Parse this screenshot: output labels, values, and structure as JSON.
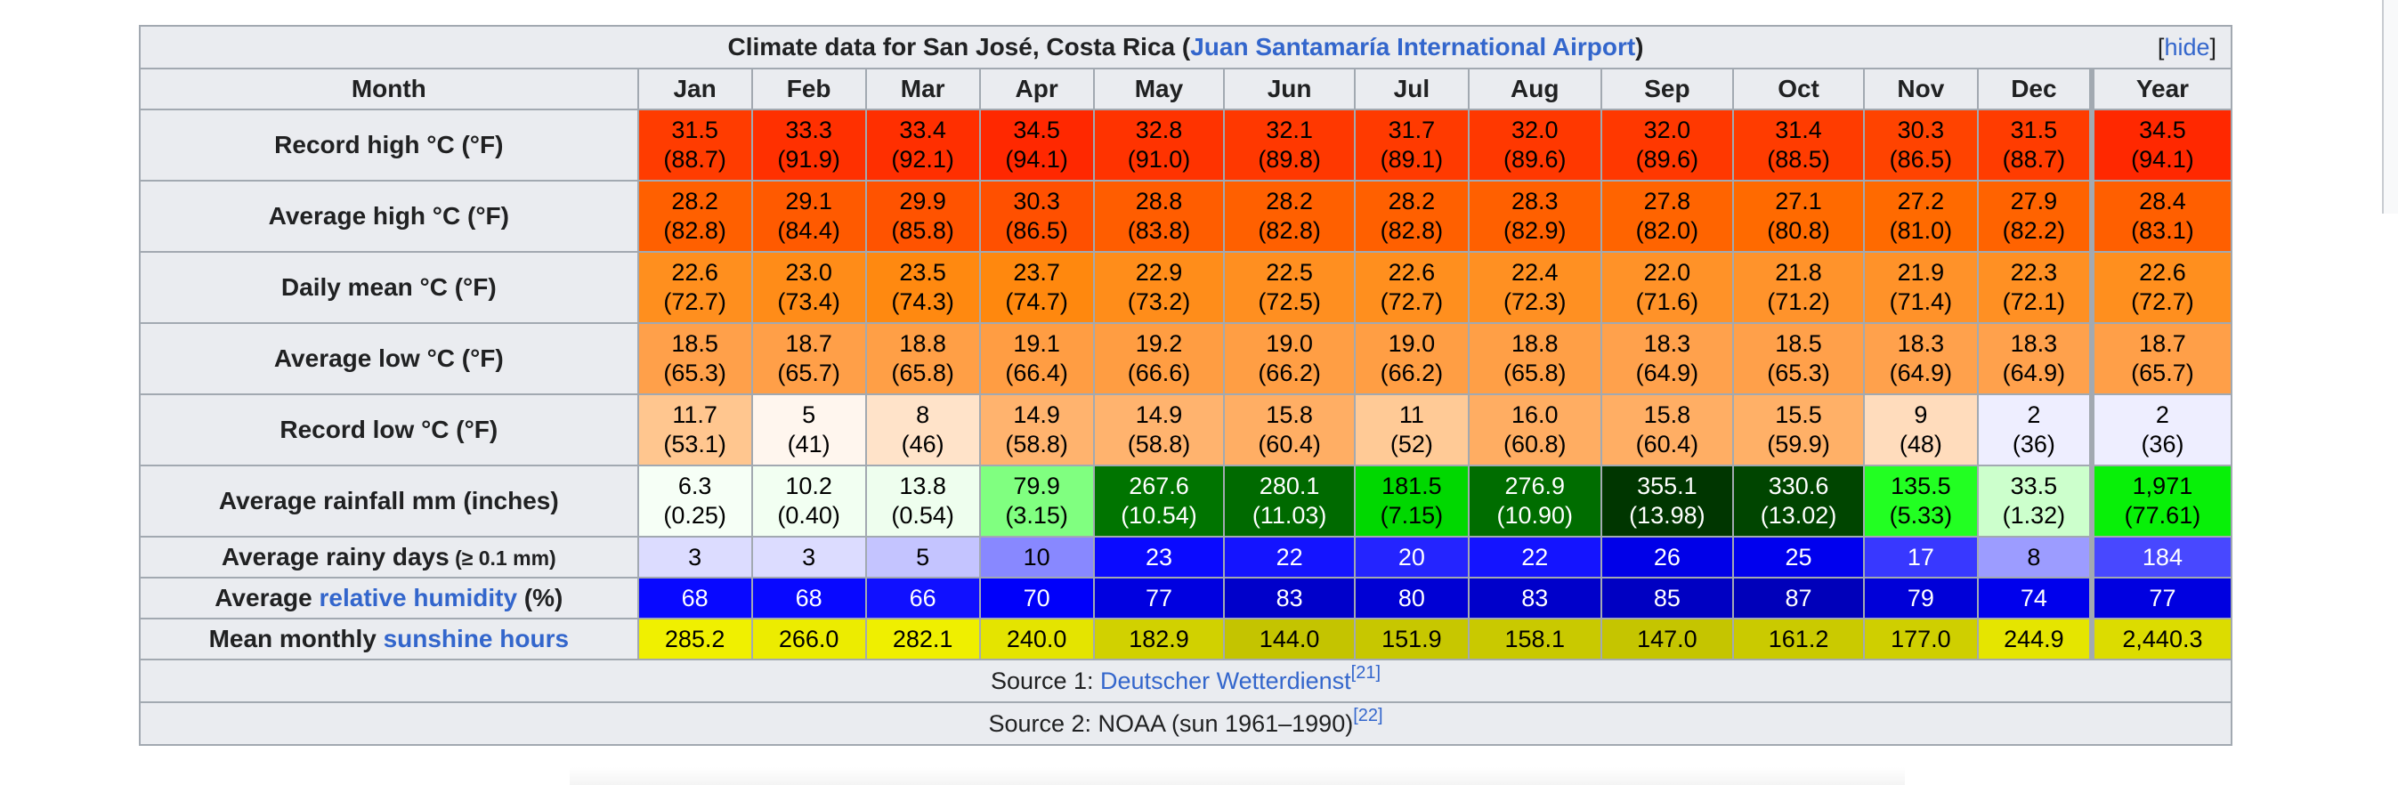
{
  "caption": {
    "prefix": "Climate data for San José, Costa Rica (",
    "link": "Juan Santamaría International Airport",
    "suffix": ")",
    "hide_open": "[",
    "hide_label": "hide",
    "hide_close": "]"
  },
  "header": {
    "month_label": "Month",
    "months": [
      "Jan",
      "Feb",
      "Mar",
      "Apr",
      "May",
      "Jun",
      "Jul",
      "Aug",
      "Sep",
      "Oct",
      "Nov",
      "Dec",
      "Year"
    ]
  },
  "rows": [
    {
      "label": "Record high °C (°F)",
      "cells": [
        {
          "c": "31.5",
          "f": "(88.7)",
          "bg": "#ff3c00",
          "fg": "#000000"
        },
        {
          "c": "33.3",
          "f": "(91.9)",
          "bg": "#ff3000",
          "fg": "#000000"
        },
        {
          "c": "33.4",
          "f": "(92.1)",
          "bg": "#ff2f00",
          "fg": "#000000"
        },
        {
          "c": "34.5",
          "f": "(94.1)",
          "bg": "#ff2800",
          "fg": "#000000"
        },
        {
          "c": "32.8",
          "f": "(91.0)",
          "bg": "#ff3300",
          "fg": "#000000"
        },
        {
          "c": "32.1",
          "f": "(89.8)",
          "bg": "#ff3800",
          "fg": "#000000"
        },
        {
          "c": "31.7",
          "f": "(89.1)",
          "bg": "#ff3a00",
          "fg": "#000000"
        },
        {
          "c": "32.0",
          "f": "(89.6)",
          "bg": "#ff3800",
          "fg": "#000000"
        },
        {
          "c": "32.0",
          "f": "(89.6)",
          "bg": "#ff3800",
          "fg": "#000000"
        },
        {
          "c": "31.4",
          "f": "(88.5)",
          "bg": "#ff3c00",
          "fg": "#000000"
        },
        {
          "c": "30.3",
          "f": "(86.5)",
          "bg": "#ff4300",
          "fg": "#000000"
        },
        {
          "c": "31.5",
          "f": "(88.7)",
          "bg": "#ff3c00",
          "fg": "#000000"
        },
        {
          "c": "34.5",
          "f": "(94.1)",
          "bg": "#ff2800",
          "fg": "#000000"
        }
      ]
    },
    {
      "label": "Average high °C (°F)",
      "cells": [
        {
          "c": "28.2",
          "f": "(82.8)",
          "bg": "#ff6000",
          "fg": "#000000"
        },
        {
          "c": "29.1",
          "f": "(84.4)",
          "bg": "#ff5a00",
          "fg": "#000000"
        },
        {
          "c": "29.9",
          "f": "(85.8)",
          "bg": "#ff5300",
          "fg": "#000000"
        },
        {
          "c": "30.3",
          "f": "(86.5)",
          "bg": "#ff5000",
          "fg": "#000000"
        },
        {
          "c": "28.8",
          "f": "(83.8)",
          "bg": "#ff5d00",
          "fg": "#000000"
        },
        {
          "c": "28.2",
          "f": "(82.8)",
          "bg": "#ff6000",
          "fg": "#000000"
        },
        {
          "c": "28.2",
          "f": "(82.8)",
          "bg": "#ff6000",
          "fg": "#000000"
        },
        {
          "c": "28.3",
          "f": "(82.9)",
          "bg": "#ff6000",
          "fg": "#000000"
        },
        {
          "c": "27.8",
          "f": "(82.0)",
          "bg": "#ff6400",
          "fg": "#000000"
        },
        {
          "c": "27.1",
          "f": "(80.8)",
          "bg": "#ff6a00",
          "fg": "#000000"
        },
        {
          "c": "27.2",
          "f": "(81.0)",
          "bg": "#ff6a00",
          "fg": "#000000"
        },
        {
          "c": "27.9",
          "f": "(82.2)",
          "bg": "#ff6300",
          "fg": "#000000"
        },
        {
          "c": "28.4",
          "f": "(83.1)",
          "bg": "#ff5f00",
          "fg": "#000000"
        }
      ]
    },
    {
      "label": "Daily mean °C (°F)",
      "cells": [
        {
          "c": "22.6",
          "f": "(72.7)",
          "bg": "#ff8f1e",
          "fg": "#000000"
        },
        {
          "c": "23.0",
          "f": "(73.4)",
          "bg": "#ff8c18",
          "fg": "#000000"
        },
        {
          "c": "23.5",
          "f": "(74.3)",
          "bg": "#ff8910",
          "fg": "#000000"
        },
        {
          "c": "23.7",
          "f": "(74.7)",
          "bg": "#ff880e",
          "fg": "#000000"
        },
        {
          "c": "22.9",
          "f": "(73.2)",
          "bg": "#ff8d1a",
          "fg": "#000000"
        },
        {
          "c": "22.5",
          "f": "(72.5)",
          "bg": "#ff8f20",
          "fg": "#000000"
        },
        {
          "c": "22.6",
          "f": "(72.7)",
          "bg": "#ff8f1e",
          "fg": "#000000"
        },
        {
          "c": "22.4",
          "f": "(72.3)",
          "bg": "#ff9022",
          "fg": "#000000"
        },
        {
          "c": "22.0",
          "f": "(71.6)",
          "bg": "#ff9228",
          "fg": "#000000"
        },
        {
          "c": "21.8",
          "f": "(71.2)",
          "bg": "#ff932b",
          "fg": "#000000"
        },
        {
          "c": "21.9",
          "f": "(71.4)",
          "bg": "#ff9229",
          "fg": "#000000"
        },
        {
          "c": "22.3",
          "f": "(72.1)",
          "bg": "#ff9023",
          "fg": "#000000"
        },
        {
          "c": "22.6",
          "f": "(72.7)",
          "bg": "#ff8f1e",
          "fg": "#000000"
        }
      ]
    },
    {
      "label": "Average low °C (°F)",
      "cells": [
        {
          "c": "18.5",
          "f": "(65.3)",
          "bg": "#ffa04a",
          "fg": "#000000"
        },
        {
          "c": "18.7",
          "f": "(65.7)",
          "bg": "#ff9f48",
          "fg": "#000000"
        },
        {
          "c": "18.8",
          "f": "(65.8)",
          "bg": "#ff9f46",
          "fg": "#000000"
        },
        {
          "c": "19.1",
          "f": "(66.4)",
          "bg": "#ff9d43",
          "fg": "#000000"
        },
        {
          "c": "19.2",
          "f": "(66.6)",
          "bg": "#ff9d42",
          "fg": "#000000"
        },
        {
          "c": "19.0",
          "f": "(66.2)",
          "bg": "#ff9e44",
          "fg": "#000000"
        },
        {
          "c": "19.0",
          "f": "(66.2)",
          "bg": "#ff9e44",
          "fg": "#000000"
        },
        {
          "c": "18.8",
          "f": "(65.8)",
          "bg": "#ff9f46",
          "fg": "#000000"
        },
        {
          "c": "18.3",
          "f": "(64.9)",
          "bg": "#ffa14c",
          "fg": "#000000"
        },
        {
          "c": "18.5",
          "f": "(65.3)",
          "bg": "#ffa04a",
          "fg": "#000000"
        },
        {
          "c": "18.3",
          "f": "(64.9)",
          "bg": "#ffa14c",
          "fg": "#000000"
        },
        {
          "c": "18.3",
          "f": "(64.9)",
          "bg": "#ffa14c",
          "fg": "#000000"
        },
        {
          "c": "18.7",
          "f": "(65.7)",
          "bg": "#ff9f48",
          "fg": "#000000"
        }
      ]
    },
    {
      "label": "Record low °C (°F)",
      "cells": [
        {
          "c": "11.7",
          "f": "(53.1)",
          "bg": "#ffc68f",
          "fg": "#000000"
        },
        {
          "c": "5",
          "f": "(41)",
          "bg": "#fff6ee",
          "fg": "#000000"
        },
        {
          "c": "8",
          "f": "(46)",
          "bg": "#ffe3c9",
          "fg": "#000000"
        },
        {
          "c": "14.9",
          "f": "(58.8)",
          "bg": "#ffb36e",
          "fg": "#000000"
        },
        {
          "c": "14.9",
          "f": "(58.8)",
          "bg": "#ffb36e",
          "fg": "#000000"
        },
        {
          "c": "15.8",
          "f": "(60.4)",
          "bg": "#ffae64",
          "fg": "#000000"
        },
        {
          "c": "11",
          "f": "(52)",
          "bg": "#ffca96",
          "fg": "#000000"
        },
        {
          "c": "16.0",
          "f": "(60.8)",
          "bg": "#ffad62",
          "fg": "#000000"
        },
        {
          "c": "15.8",
          "f": "(60.4)",
          "bg": "#ffae64",
          "fg": "#000000"
        },
        {
          "c": "15.5",
          "f": "(59.9)",
          "bg": "#ffb067",
          "fg": "#000000"
        },
        {
          "c": "9",
          "f": "(48)",
          "bg": "#ffdcbc",
          "fg": "#000000"
        },
        {
          "c": "2",
          "f": "(36)",
          "bg": "#eeeeff",
          "fg": "#000000"
        },
        {
          "c": "2",
          "f": "(36)",
          "bg": "#eeeeff",
          "fg": "#000000"
        }
      ]
    },
    {
      "label": "Average rainfall mm (inches)",
      "cells": [
        {
          "c": "6.3",
          "f": "(0.25)",
          "bg": "#f6fff6",
          "fg": "#000000"
        },
        {
          "c": "10.2",
          "f": "(0.40)",
          "bg": "#f2fff2",
          "fg": "#000000"
        },
        {
          "c": "13.8",
          "f": "(0.54)",
          "bg": "#eefeee",
          "fg": "#000000"
        },
        {
          "c": "79.9",
          "f": "(3.15)",
          "bg": "#80ff80",
          "fg": "#000000"
        },
        {
          "c": "267.6",
          "f": "(10.54)",
          "bg": "#007400",
          "fg": "#ffffff"
        },
        {
          "c": "280.1",
          "f": "(11.03)",
          "bg": "#006a00",
          "fg": "#ffffff"
        },
        {
          "c": "181.5",
          "f": "(7.15)",
          "bg": "#00d800",
          "fg": "#000000"
        },
        {
          "c": "276.9",
          "f": "(10.90)",
          "bg": "#006d00",
          "fg": "#ffffff"
        },
        {
          "c": "355.1",
          "f": "(13.98)",
          "bg": "#003600",
          "fg": "#ffffff"
        },
        {
          "c": "330.6",
          "f": "(13.02)",
          "bg": "#004500",
          "fg": "#ffffff"
        },
        {
          "c": "135.5",
          "f": "(5.33)",
          "bg": "#22ff22",
          "fg": "#000000"
        },
        {
          "c": "33.5",
          "f": "(1.32)",
          "bg": "#ccffcc",
          "fg": "#000000"
        },
        {
          "c": "1,971",
          "f": "(77.61)",
          "bg": "#08f008",
          "fg": "#000000"
        }
      ]
    }
  ],
  "single_rows": [
    {
      "label": "Average rainy days (≥ 0.1 mm)",
      "label_main": "Average rainy days",
      "label_small": " (≥ 0.1 mm)",
      "cells": [
        {
          "v": "3",
          "bg": "#dcdcff",
          "fg": "#000000"
        },
        {
          "v": "3",
          "bg": "#dcdcff",
          "fg": "#000000"
        },
        {
          "v": "5",
          "bg": "#c4c4ff",
          "fg": "#000000"
        },
        {
          "v": "10",
          "bg": "#8888ff",
          "fg": "#000000"
        },
        {
          "v": "23",
          "bg": "#0a0aff",
          "fg": "#ffffff"
        },
        {
          "v": "22",
          "bg": "#1414ff",
          "fg": "#ffffff"
        },
        {
          "v": "20",
          "bg": "#2424ff",
          "fg": "#ffffff"
        },
        {
          "v": "22",
          "bg": "#1414ff",
          "fg": "#ffffff"
        },
        {
          "v": "26",
          "bg": "#0000e8",
          "fg": "#ffffff"
        },
        {
          "v": "25",
          "bg": "#0000ee",
          "fg": "#ffffff"
        },
        {
          "v": "17",
          "bg": "#3838ff",
          "fg": "#ffffff"
        },
        {
          "v": "8",
          "bg": "#9c9cff",
          "fg": "#000000"
        },
        {
          "v": "184",
          "bg": "#4848ff",
          "fg": "#ffffff"
        }
      ]
    },
    {
      "label_pre": "Average ",
      "label_link": "relative humidity",
      "label_post": " (%)",
      "cells": [
        {
          "v": "68",
          "bg": "#0808ff",
          "fg": "#ffffff"
        },
        {
          "v": "68",
          "bg": "#0808ff",
          "fg": "#ffffff"
        },
        {
          "v": "66",
          "bg": "#1010ff",
          "fg": "#ffffff"
        },
        {
          "v": "70",
          "bg": "#0000fa",
          "fg": "#ffffff"
        },
        {
          "v": "77",
          "bg": "#0000e0",
          "fg": "#ffffff"
        },
        {
          "v": "83",
          "bg": "#0000ca",
          "fg": "#ffffff"
        },
        {
          "v": "80",
          "bg": "#0000d4",
          "fg": "#ffffff"
        },
        {
          "v": "83",
          "bg": "#0000ca",
          "fg": "#ffffff"
        },
        {
          "v": "85",
          "bg": "#0000c2",
          "fg": "#ffffff"
        },
        {
          "v": "87",
          "bg": "#0000ba",
          "fg": "#ffffff"
        },
        {
          "v": "79",
          "bg": "#0000d8",
          "fg": "#ffffff"
        },
        {
          "v": "74",
          "bg": "#0000ec",
          "fg": "#ffffff"
        },
        {
          "v": "77",
          "bg": "#0000e0",
          "fg": "#ffffff"
        }
      ]
    },
    {
      "label_pre": "Mean monthly ",
      "label_link": "sunshine hours",
      "label_post": "",
      "cells": [
        {
          "v": "285.2",
          "bg": "#f0f000",
          "fg": "#000000"
        },
        {
          "v": "266.0",
          "bg": "#ecec00",
          "fg": "#000000"
        },
        {
          "v": "282.1",
          "bg": "#efef00",
          "fg": "#000000"
        },
        {
          "v": "240.0",
          "bg": "#e4e400",
          "fg": "#000000"
        },
        {
          "v": "182.9",
          "bg": "#d1d100",
          "fg": "#000000"
        },
        {
          "v": "144.0",
          "bg": "#c4c400",
          "fg": "#000000"
        },
        {
          "v": "151.9",
          "bg": "#c7c700",
          "fg": "#000000"
        },
        {
          "v": "158.1",
          "bg": "#c9c900",
          "fg": "#000000"
        },
        {
          "v": "147.0",
          "bg": "#c5c500",
          "fg": "#000000"
        },
        {
          "v": "161.2",
          "bg": "#caca00",
          "fg": "#000000"
        },
        {
          "v": "177.0",
          "bg": "#cfcf00",
          "fg": "#000000"
        },
        {
          "v": "244.9",
          "bg": "#e5e500",
          "fg": "#000000"
        },
        {
          "v": "2,440.3",
          "bg": "#dcdc00",
          "fg": "#000000"
        }
      ]
    }
  ],
  "sources": [
    {
      "prefix": "Source 1: ",
      "link": "Deutscher Wetterdienst",
      "ref": "[21]",
      "suffix": ""
    },
    {
      "prefix": "Source 2: NOAA (sun 1961–1990)",
      "link": "",
      "ref": "[22]",
      "suffix": ""
    }
  ],
  "colors": {
    "header_bg": "#eaecf0",
    "border": "#a2a9b1",
    "link": "#3366cc"
  }
}
